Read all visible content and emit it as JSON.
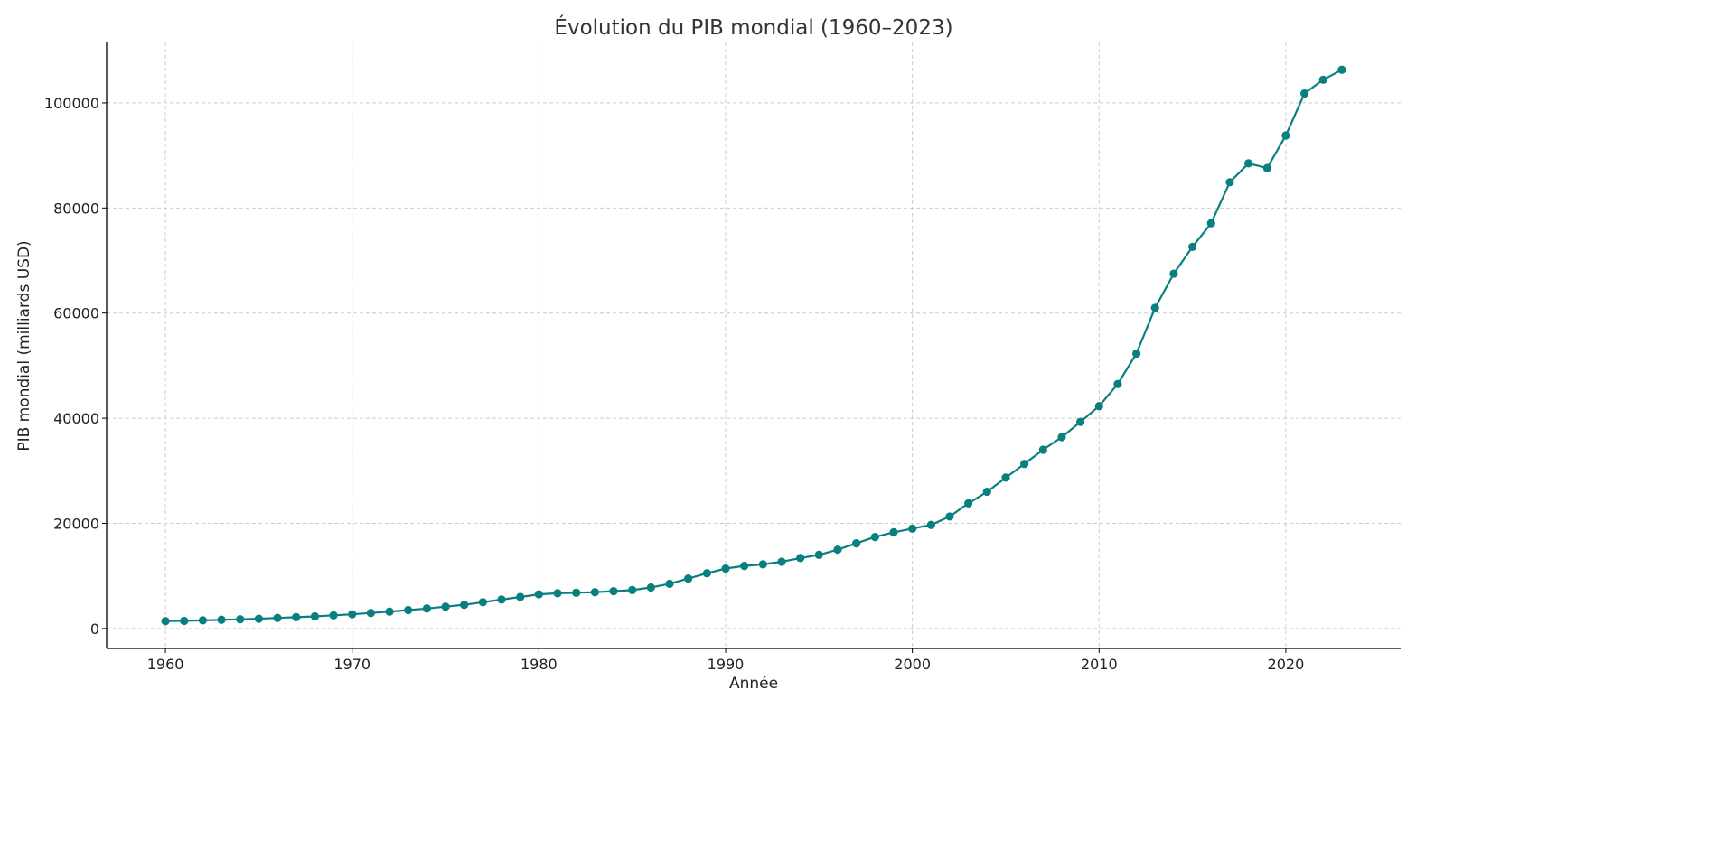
{
  "chart_data": {
    "type": "line",
    "title": "Évolution du PIB mondial (1960–2023)",
    "xlabel": "Année",
    "ylabel": "PIB mondial (milliards USD)",
    "xlim": [
      1956.85,
      2026.15
    ],
    "ylim": [
      -3800,
      111500
    ],
    "xticks": [
      1960,
      1970,
      1980,
      1990,
      2000,
      2010,
      2020
    ],
    "yticks": [
      0,
      20000,
      40000,
      60000,
      80000,
      100000
    ],
    "grid": true,
    "marker": "circle",
    "color": "#0a7f7f",
    "series": [
      {
        "x": [
          1960,
          1961,
          1962,
          1963,
          1964,
          1965,
          1966,
          1967,
          1968,
          1969,
          1970,
          1971,
          1972,
          1973,
          1974,
          1975,
          1976,
          1977,
          1978,
          1979,
          1980,
          1981,
          1982,
          1983,
          1984,
          1985,
          1986,
          1987,
          1988,
          1989,
          1990,
          1991,
          1992,
          1993,
          1994,
          1995,
          1996,
          1997,
          1998,
          1999,
          2000,
          2001,
          2002,
          2003,
          2004,
          2005,
          2006,
          2007,
          2008,
          2009,
          2010,
          2011,
          2012,
          2013,
          2014,
          2015,
          2016,
          2017,
          2018,
          2019,
          2020,
          2021,
          2022,
          2023
        ],
        "values": [
          1400,
          1450,
          1550,
          1650,
          1750,
          1850,
          2000,
          2150,
          2300,
          2500,
          2700,
          2950,
          3200,
          3500,
          3800,
          4150,
          4500,
          5000,
          5500,
          6000,
          6500,
          6700,
          6800,
          6900,
          7100,
          7300,
          7800,
          8500,
          9500,
          10500,
          11400,
          11900,
          12200,
          12700,
          13400,
          14000,
          15000,
          16200,
          17400,
          18300,
          19000,
          19700,
          21300,
          23800,
          26000,
          28700,
          31300,
          34000,
          36400,
          39300,
          42300,
          46500,
          52300,
          61000,
          67500,
          72600,
          77100,
          84900,
          88500,
          87600,
          93800,
          101800,
          104400,
          106300
        ]
      }
    ]
  }
}
